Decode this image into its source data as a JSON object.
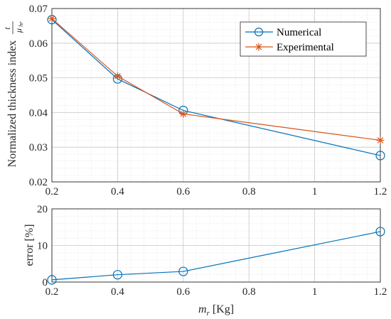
{
  "chart_data": [
    {
      "type": "line",
      "ylabel": "Normalized thickness index",
      "ylabel_frac_num": "t",
      "ylabel_frac_den": "μ",
      "ylabel_frac_sub": "hr",
      "xlim": [
        0.2,
        1.2
      ],
      "ylim": [
        0.02,
        0.07
      ],
      "x_ticks": [
        "0.2",
        "0.4",
        "0.6",
        "0.8",
        "1",
        "1.2"
      ],
      "y_ticks": [
        "0.02",
        "0.03",
        "0.04",
        "0.05",
        "0.06",
        "0.07"
      ],
      "grid": true,
      "minor_grid": true,
      "legend_position": "top-right",
      "series": [
        {
          "name": "Numerical",
          "color": "#0072BD",
          "marker": "circle",
          "x": [
            0.2,
            0.4,
            0.6,
            1.2
          ],
          "y": [
            0.0668,
            0.0497,
            0.0406,
            0.0276
          ]
        },
        {
          "name": "Experimental",
          "color": "#D95319",
          "marker": "asterisk",
          "x": [
            0.2,
            0.4,
            0.6,
            1.2
          ],
          "y": [
            0.0671,
            0.0505,
            0.0396,
            0.032
          ]
        }
      ]
    },
    {
      "type": "line",
      "ylabel": "error [%]",
      "xlabel": "m",
      "xlabel_sub": "r",
      "xlabel_unit": "[Kg]",
      "xlim": [
        0.2,
        1.2
      ],
      "ylim": [
        0,
        20
      ],
      "x_ticks": [
        "0.2",
        "0.4",
        "0.6",
        "0.8",
        "1",
        "1.2"
      ],
      "y_ticks": [
        "0",
        "10",
        "20"
      ],
      "grid": true,
      "minor_grid": true,
      "series": [
        {
          "color": "#0072BD",
          "marker": "circle",
          "x": [
            0.2,
            0.4,
            0.6,
            1.2
          ],
          "y": [
            0.6,
            2.0,
            2.9,
            13.8
          ]
        }
      ]
    }
  ]
}
